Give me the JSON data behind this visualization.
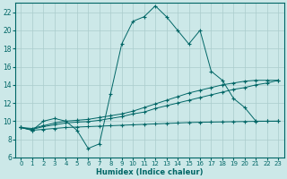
{
  "xlabel": "Humidex (Indice chaleur)",
  "background_color": "#cce8e8",
  "grid_color": "#aacccc",
  "line_color": "#006666",
  "xlim": [
    -0.5,
    23.5
  ],
  "ylim": [
    6,
    23
  ],
  "xticks": [
    0,
    1,
    2,
    3,
    4,
    5,
    6,
    7,
    8,
    9,
    10,
    11,
    12,
    13,
    14,
    15,
    16,
    17,
    18,
    19,
    20,
    21,
    22,
    23
  ],
  "yticks": [
    6,
    8,
    10,
    12,
    14,
    16,
    18,
    20,
    22
  ],
  "series1_x": [
    0,
    1,
    2,
    3,
    4,
    5,
    6,
    7,
    8,
    9,
    10,
    11,
    12,
    13,
    14,
    15,
    16,
    17,
    18,
    19,
    20,
    21,
    22,
    23
  ],
  "series1_y": [
    9.3,
    9.0,
    10.0,
    10.3,
    10.0,
    9.0,
    7.0,
    7.5,
    13.0,
    18.5,
    21.0,
    21.5,
    22.7,
    21.5,
    20.0,
    18.5,
    20.0,
    15.5,
    14.5,
    12.5,
    11.5,
    10.0,
    10.0,
    10.0
  ],
  "series2_x": [
    0,
    1,
    2,
    3,
    4,
    5,
    6,
    7,
    8,
    9,
    10,
    11,
    12,
    13,
    14,
    15,
    16,
    17,
    18,
    19,
    20,
    21,
    22,
    23
  ],
  "series2_y": [
    9.3,
    9.0,
    9.1,
    9.2,
    9.3,
    9.35,
    9.4,
    9.45,
    9.5,
    9.55,
    9.6,
    9.65,
    9.7,
    9.75,
    9.8,
    9.85,
    9.88,
    9.9,
    9.92,
    9.94,
    9.96,
    9.98,
    9.99,
    10.0
  ],
  "series3_x": [
    0,
    1,
    2,
    3,
    4,
    5,
    6,
    7,
    8,
    9,
    10,
    11,
    12,
    13,
    14,
    15,
    16,
    17,
    18,
    19,
    20,
    21,
    22,
    23
  ],
  "series3_y": [
    9.3,
    9.2,
    9.5,
    9.8,
    10.0,
    10.1,
    10.2,
    10.4,
    10.6,
    10.8,
    11.1,
    11.5,
    11.9,
    12.3,
    12.7,
    13.1,
    13.4,
    13.7,
    14.0,
    14.2,
    14.4,
    14.5,
    14.5,
    14.5
  ],
  "series4_x": [
    0,
    1,
    2,
    3,
    4,
    5,
    6,
    7,
    8,
    9,
    10,
    11,
    12,
    13,
    14,
    15,
    16,
    17,
    18,
    19,
    20,
    21,
    22,
    23
  ],
  "series4_y": [
    9.3,
    9.1,
    9.4,
    9.6,
    9.8,
    9.9,
    9.95,
    10.1,
    10.3,
    10.5,
    10.8,
    11.0,
    11.4,
    11.7,
    12.0,
    12.3,
    12.6,
    12.9,
    13.2,
    13.5,
    13.7,
    14.0,
    14.2,
    14.5
  ]
}
